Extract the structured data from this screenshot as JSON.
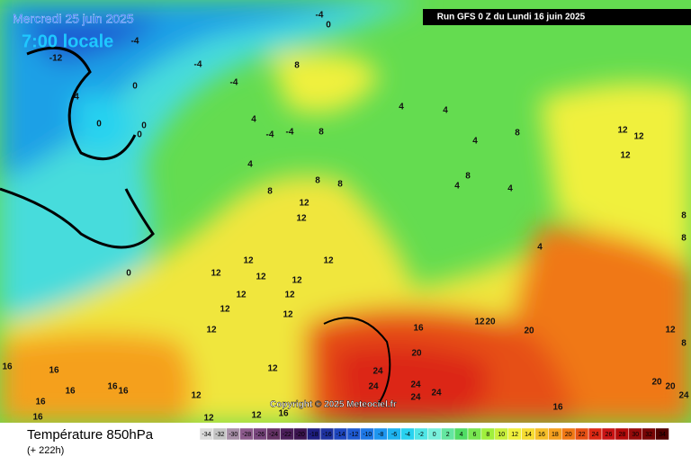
{
  "header": {
    "date": "Mercredi 25 juin 2025",
    "time": "7:00 locale",
    "run": "Run GFS 0 Z du Lundi 16 juin 2025",
    "copyright": "Copyright © 2025 Meteociel.fr"
  },
  "footer": {
    "title": "Température 850hPa",
    "lead": "(+ 222h)"
  },
  "scale": {
    "values": [
      -34,
      -32,
      -30,
      -28,
      -26,
      -24,
      -22,
      -20,
      -18,
      -16,
      -14,
      -12,
      -10,
      -8,
      -6,
      -4,
      -2,
      0,
      2,
      4,
      6,
      8,
      10,
      12,
      14,
      16,
      18,
      20,
      22,
      24,
      26,
      28,
      30,
      32,
      34
    ],
    "colors": [
      "#dcdcdc",
      "#c4c4c4",
      "#a890a8",
      "#8c5a8c",
      "#78467d",
      "#643264",
      "#4b1e5a",
      "#3c1450",
      "#1e1e82",
      "#1e32a0",
      "#1e46be",
      "#1e5ad2",
      "#1e78e6",
      "#1e96f0",
      "#1eb4f0",
      "#28d2f0",
      "#50e6e6",
      "#78f0dc",
      "#64e6a0",
      "#50dc64",
      "#78e650",
      "#a0f03c",
      "#c8f03c",
      "#f0f03c",
      "#f5dc32",
      "#f5be28",
      "#f5a01e",
      "#f07814",
      "#e65014",
      "#dc2814",
      "#c81414",
      "#b40a0a",
      "#960a0a",
      "#780505",
      "#500000"
    ]
  },
  "contour_labels": [
    0,
    -4,
    -4,
    -12,
    -4,
    -4,
    8,
    0,
    4,
    0,
    0,
    0,
    4,
    -4,
    -4,
    8,
    4,
    4,
    4,
    8,
    12,
    12,
    12,
    4,
    8,
    8,
    8,
    12,
    12,
    8,
    4,
    4,
    8,
    4,
    8,
    12,
    12,
    12,
    12,
    12,
    12,
    12,
    12,
    12,
    12,
    16,
    20,
    12,
    20,
    12,
    8,
    20,
    24,
    12,
    12,
    24,
    24,
    24,
    24,
    16,
    16,
    16,
    16,
    16,
    16,
    16,
    12,
    12,
    16,
    16,
    20,
    20,
    24,
    0
  ]
}
